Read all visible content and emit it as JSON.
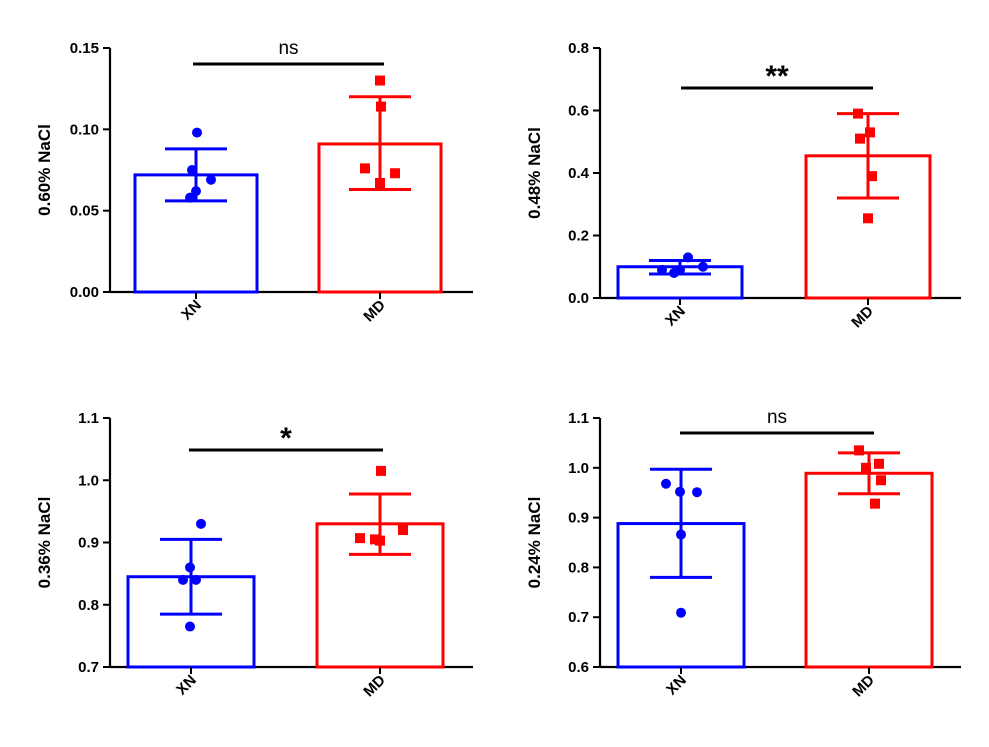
{
  "colors": {
    "XN": "#0000ff",
    "MD": "#ff0000",
    "axis": "#000000"
  },
  "chart_data": [
    {
      "type": "bar",
      "ylabel": "0.60% NaCl",
      "ylim": [
        0,
        0.15
      ],
      "yticks": [
        "0.00",
        "0.05",
        "0.10",
        "0.15"
      ],
      "categories": [
        "XN",
        "MD"
      ],
      "series": [
        {
          "name": "XN",
          "mean": 0.072,
          "error": [
            0.056,
            0.088
          ],
          "points": [
            0.098,
            0.075,
            0.069,
            0.062,
            0.058
          ],
          "marker": "circle"
        },
        {
          "name": "MD",
          "mean": 0.091,
          "error": [
            0.063,
            0.12
          ],
          "points": [
            0.13,
            0.114,
            0.076,
            0.073,
            0.067
          ],
          "marker": "square"
        }
      ],
      "significance": "ns"
    },
    {
      "type": "bar",
      "ylabel": "0.48% NaCl",
      "ylim": [
        0,
        0.8
      ],
      "yticks": [
        "0.0",
        "0.2",
        "0.4",
        "0.6",
        "0.8"
      ],
      "categories": [
        "XN",
        "MD"
      ],
      "series": [
        {
          "name": "XN",
          "mean": 0.1,
          "error": [
            0.077,
            0.12
          ],
          "points": [
            0.13,
            0.1,
            0.09,
            0.09,
            0.08
          ],
          "marker": "circle"
        },
        {
          "name": "MD",
          "mean": 0.455,
          "error": [
            0.32,
            0.59
          ],
          "points": [
            0.59,
            0.53,
            0.51,
            0.39,
            0.255
          ],
          "marker": "square"
        }
      ],
      "significance": "**"
    },
    {
      "type": "bar",
      "ylabel": "0.36% NaCl",
      "ylim": [
        0.7,
        1.1
      ],
      "yticks": [
        "0.7",
        "0.8",
        "0.9",
        "1.0",
        "1.1"
      ],
      "categories": [
        "XN",
        "MD"
      ],
      "series": [
        {
          "name": "XN",
          "mean": 0.845,
          "error": [
            0.785,
            0.905
          ],
          "points": [
            0.93,
            0.86,
            0.84,
            0.84,
            0.765
          ],
          "marker": "circle"
        },
        {
          "name": "MD",
          "mean": 0.93,
          "error": [
            0.881,
            0.978
          ],
          "points": [
            1.015,
            0.92,
            0.907,
            0.905,
            0.903
          ],
          "marker": "square"
        }
      ],
      "significance": "*"
    },
    {
      "type": "bar",
      "ylabel": "0.24% NaCl",
      "ylim": [
        0.6,
        1.1
      ],
      "yticks": [
        "0.6",
        "0.7",
        "0.8",
        "0.9",
        "1.0",
        "1.1"
      ],
      "categories": [
        "XN",
        "MD"
      ],
      "series": [
        {
          "name": "XN",
          "mean": 0.888,
          "error": [
            0.78,
            0.997
          ],
          "points": [
            0.968,
            0.952,
            0.951,
            0.866,
            0.709
          ],
          "marker": "circle"
        },
        {
          "name": "MD",
          "mean": 0.989,
          "error": [
            0.948,
            1.03
          ],
          "points": [
            1.035,
            1.008,
            1.0,
            0.975,
            0.928
          ],
          "marker": "square"
        }
      ],
      "significance": "ns"
    }
  ]
}
